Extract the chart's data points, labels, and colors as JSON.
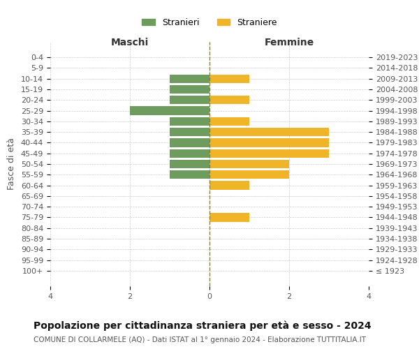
{
  "age_groups": [
    "100+",
    "95-99",
    "90-94",
    "85-89",
    "80-84",
    "75-79",
    "70-74",
    "65-69",
    "60-64",
    "55-59",
    "50-54",
    "45-49",
    "40-44",
    "35-39",
    "30-34",
    "25-29",
    "20-24",
    "15-19",
    "10-14",
    "5-9",
    "0-4"
  ],
  "birth_years": [
    "≤ 1923",
    "1924-1928",
    "1929-1933",
    "1934-1938",
    "1939-1943",
    "1944-1948",
    "1949-1953",
    "1954-1958",
    "1959-1963",
    "1964-1968",
    "1969-1973",
    "1974-1978",
    "1979-1983",
    "1984-1988",
    "1989-1993",
    "1994-1998",
    "1999-2003",
    "2004-2008",
    "2009-2013",
    "2014-2018",
    "2019-2023"
  ],
  "maschi": [
    0,
    0,
    0,
    0,
    0,
    0,
    0,
    0,
    0,
    1,
    1,
    1,
    1,
    1,
    1,
    2,
    1,
    1,
    1,
    0,
    0
  ],
  "femmine": [
    0,
    0,
    0,
    0,
    0,
    1,
    0,
    0,
    1,
    2,
    2,
    3,
    3,
    3,
    1,
    0,
    1,
    0,
    1,
    0,
    0
  ],
  "maschi_color": "#6e9b5e",
  "femmine_color": "#f0b429",
  "center_line_color": "#808040",
  "background_color": "#ffffff",
  "grid_color": "#cccccc",
  "title": "Popolazione per cittadinanza straniera per età e sesso - 2024",
  "subtitle": "COMUNE DI COLLARMELE (AQ) - Dati ISTAT al 1° gennaio 2024 - Elaborazione TUTTITALIA.IT",
  "xlabel_left": "Maschi",
  "xlabel_right": "Femmine",
  "ylabel_left": "Fasce di età",
  "legend_maschi": "Stranieri",
  "legend_femmine": "Straniere",
  "xlim": 4,
  "bar_height": 0.8
}
